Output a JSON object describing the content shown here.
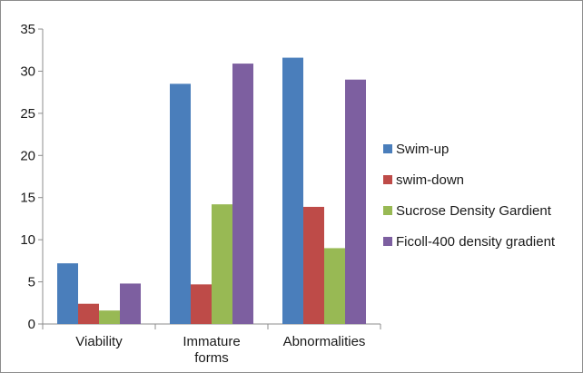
{
  "chart_data": {
    "type": "bar",
    "title": "",
    "xlabel": "",
    "ylabel": "",
    "categories": [
      [
        "Viability"
      ],
      [
        "Immature",
        "forms"
      ],
      [
        "Abnormalities"
      ]
    ],
    "series": [
      {
        "name": "Swim-up",
        "color": "#4a7ebb",
        "values": [
          7.2,
          28.5,
          31.6
        ]
      },
      {
        "name": "swim-down",
        "color": "#be4b48",
        "values": [
          2.4,
          4.7,
          13.9
        ]
      },
      {
        "name": "Sucrose Density Gardient",
        "color": "#98b954",
        "values": [
          1.6,
          14.2,
          9.0
        ]
      },
      {
        "name": "Ficoll-400 density gradient",
        "color": "#7d5fa0",
        "values": [
          4.8,
          30.9,
          29.0
        ]
      }
    ],
    "ylim": [
      0,
      35
    ],
    "yticks": [
      0,
      5,
      10,
      15,
      20,
      25,
      30,
      35
    ],
    "grid": false,
    "legend_position": "right"
  }
}
